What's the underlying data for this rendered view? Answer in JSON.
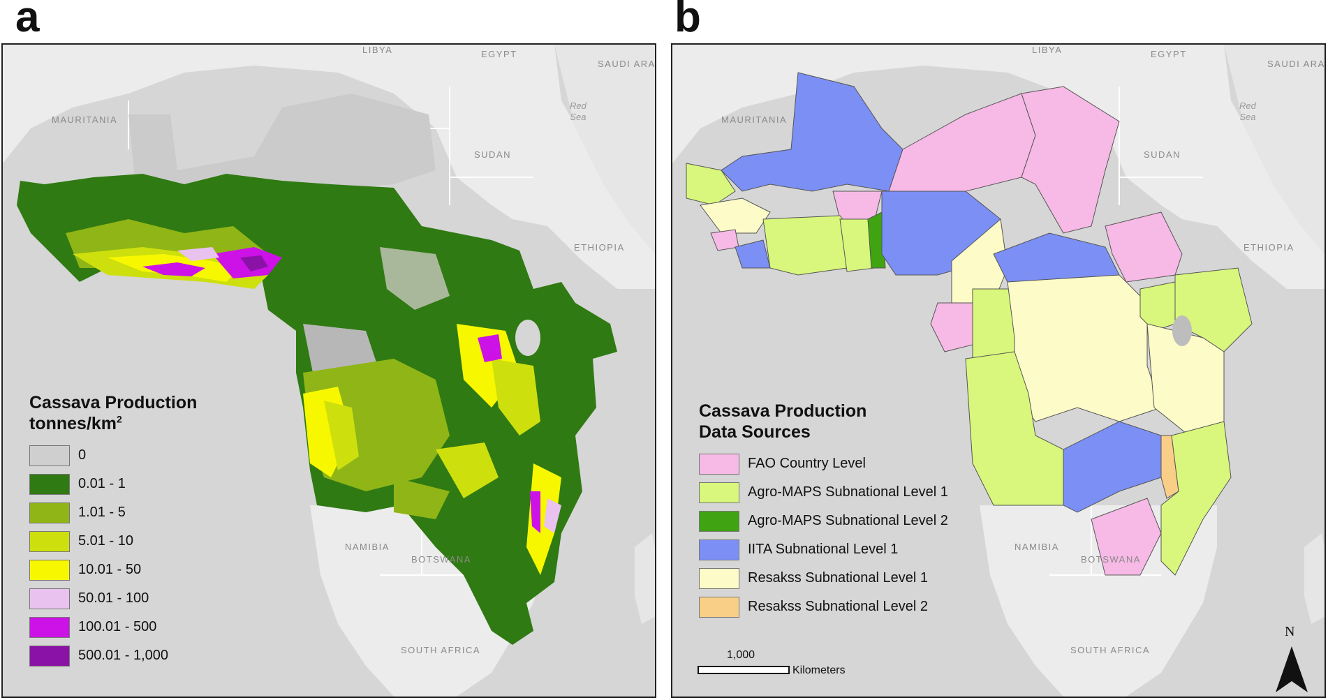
{
  "panels": {
    "a": {
      "letter": "a",
      "labels": {
        "libya": "LIBYA",
        "egypt": "EGYPT",
        "saudi": "SAUDI ARA",
        "mauritania": "MAURITANIA",
        "sudan": "SUDAN",
        "ethiopia": "ETHIOPIA",
        "namibia": "NAMIBIA",
        "botswana": "BOTSWANA",
        "south_africa": "SOUTH AFRICA",
        "red_sea": "Red\nSea"
      },
      "legend": {
        "title": "Cassava Production",
        "unit": "tonnes/km",
        "unit_sup": "2",
        "items": [
          {
            "label": "0",
            "color": "#cfcfcf"
          },
          {
            "label": "0.01 - 1",
            "color": "#2f7a12"
          },
          {
            "label": "1.01 - 5",
            "color": "#8fb516"
          },
          {
            "label": "5.01 - 10",
            "color": "#cde00e"
          },
          {
            "label": "10.01 - 50",
            "color": "#f7f700"
          },
          {
            "label": "50.01 - 100",
            "color": "#e9c2f0"
          },
          {
            "label": "100.01 - 500",
            "color": "#cc12e6"
          },
          {
            "label": "500.01 - 1,000",
            "color": "#8b12a6"
          }
        ]
      }
    },
    "b": {
      "letter": "b",
      "labels": {
        "libya": "LIBYA",
        "egypt": "EGYPT",
        "saudi": "SAUDI ARA",
        "mauritania": "MAURITANIA",
        "sudan": "SUDAN",
        "ethiopia": "ETHIOPIA",
        "namibia": "NAMIBIA",
        "botswana": "BOTSWANA",
        "south_africa": "SOUTH AFRICA",
        "red_sea": "Red\nSea"
      },
      "legend": {
        "title": "Cassava Production",
        "title2": "Data Sources",
        "items": [
          {
            "label": "FAO Country Level",
            "color": "#f7b9e6"
          },
          {
            "label": "Agro-MAPS Subnational Level 1",
            "color": "#d8f77c"
          },
          {
            "label": "Agro-MAPS Subnational Level 2",
            "color": "#3fa312"
          },
          {
            "label": "IITA Subnational Level 1",
            "color": "#7b8ff5"
          },
          {
            "label": "Resakss Subnational Level 1",
            "color": "#fdfcc8"
          },
          {
            "label": "Resakss Subnational Level 2",
            "color": "#f9ce86"
          }
        ]
      },
      "scale_bar": {
        "value": "1,000",
        "unit": "Kilometers"
      },
      "north": "N"
    }
  }
}
